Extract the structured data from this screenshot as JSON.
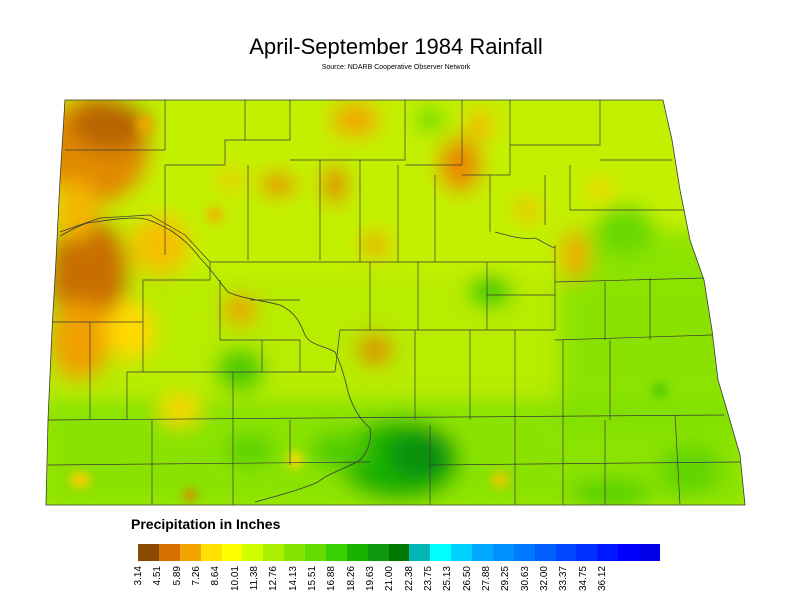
{
  "title": "April-September 1984 Rainfall",
  "source": "Source: NDARB Cooperative Observer Network",
  "legend": {
    "title": "Precipitation in Inches",
    "breaks": [
      "3.14",
      "4.51",
      "5.89",
      "7.26",
      "8.64",
      "10.01",
      "11.38",
      "12.76",
      "14.13",
      "15.51",
      "16.88",
      "18.26",
      "19.63",
      "21.00",
      "22.38",
      "23.75",
      "25.13",
      "26.50",
      "27.88",
      "29.25",
      "30.63",
      "32.00",
      "33.37",
      "34.75",
      "36.12"
    ],
    "colors": [
      "#8a4a00",
      "#d67000",
      "#f1a400",
      "#ffe000",
      "#ffff00",
      "#d2ff00",
      "#a8f000",
      "#84e600",
      "#64dc00",
      "#38d000",
      "#1ab200",
      "#0e9a10",
      "#007800",
      "#00b6b6",
      "#00ffff",
      "#00d0ff",
      "#00a8ff",
      "#0090ff",
      "#0078ff",
      "#0060ff",
      "#0048ff",
      "#0030ff",
      "#0018ff",
      "#0000ff",
      "#0000e8"
    ]
  }
}
